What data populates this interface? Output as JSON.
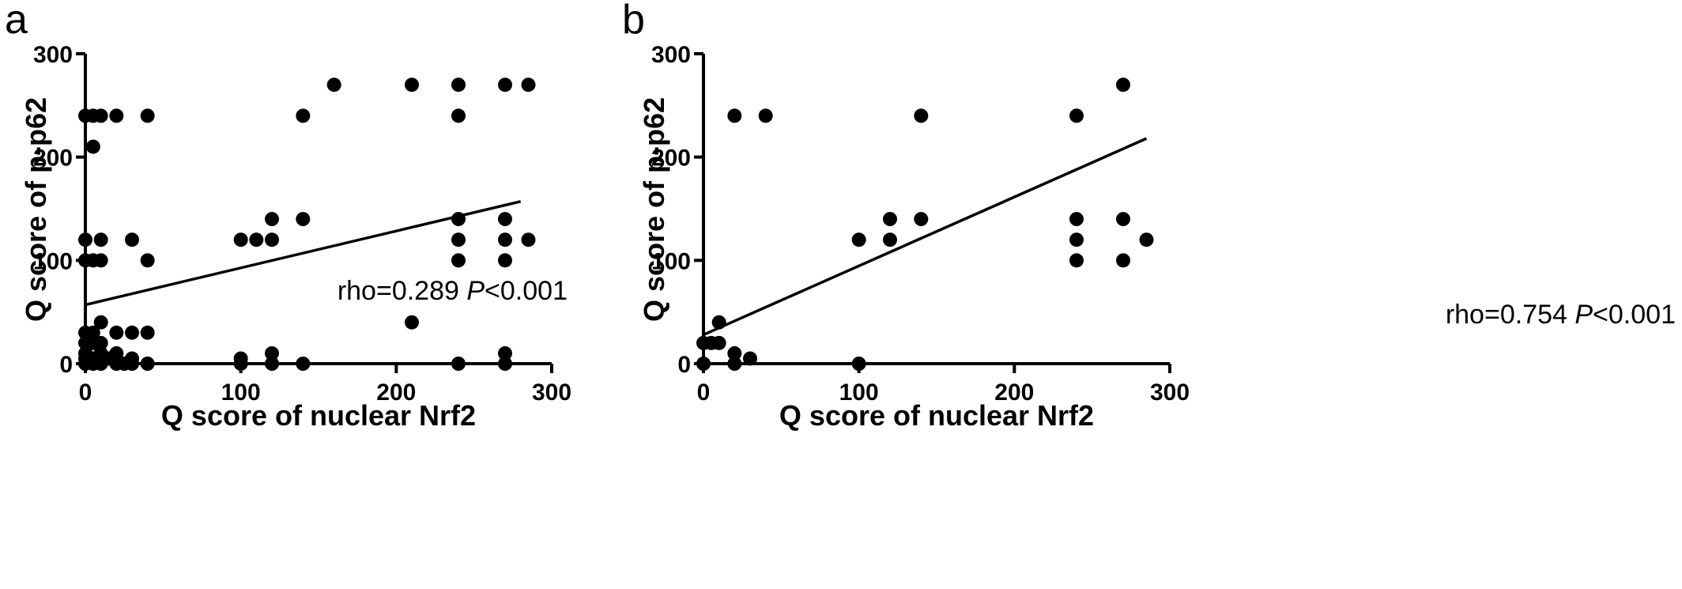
{
  "chart_data": [
    {
      "type": "scatter",
      "panel_label": "a",
      "xlabel": "Q score of nuclear Nrf2",
      "ylabel": "Q score of p-p62",
      "xlim": [
        0,
        300
      ],
      "ylim": [
        0,
        300
      ],
      "xticks": [
        "0",
        "100",
        "200",
        "300"
      ],
      "yticks": [
        "0",
        "100",
        "200",
        "300"
      ],
      "grid": false,
      "points": [
        [
          0,
          240
        ],
        [
          5,
          240
        ],
        [
          10,
          240
        ],
        [
          20,
          240
        ],
        [
          40,
          240
        ],
        [
          5,
          210
        ],
        [
          0,
          120
        ],
        [
          10,
          120
        ],
        [
          30,
          120
        ],
        [
          0,
          100
        ],
        [
          5,
          100
        ],
        [
          10,
          100
        ],
        [
          40,
          100
        ],
        [
          0,
          30
        ],
        [
          5,
          30
        ],
        [
          20,
          30
        ],
        [
          30,
          30
        ],
        [
          40,
          30
        ],
        [
          10,
          40
        ],
        [
          0,
          20
        ],
        [
          5,
          20
        ],
        [
          10,
          20
        ],
        [
          0,
          10
        ],
        [
          10,
          10
        ],
        [
          20,
          10
        ],
        [
          0,
          5
        ],
        [
          5,
          5
        ],
        [
          15,
          5
        ],
        [
          30,
          5
        ],
        [
          0,
          0
        ],
        [
          5,
          0
        ],
        [
          10,
          0
        ],
        [
          20,
          0
        ],
        [
          25,
          0
        ],
        [
          30,
          0
        ],
        [
          40,
          0
        ],
        [
          100,
          120
        ],
        [
          110,
          120
        ],
        [
          120,
          120
        ],
        [
          120,
          140
        ],
        [
          140,
          140
        ],
        [
          140,
          240
        ],
        [
          160,
          270
        ],
        [
          210,
          270
        ],
        [
          100,
          5
        ],
        [
          100,
          0
        ],
        [
          120,
          10
        ],
        [
          120,
          0
        ],
        [
          140,
          0
        ],
        [
          210,
          40
        ],
        [
          240,
          270
        ],
        [
          240,
          240
        ],
        [
          240,
          140
        ],
        [
          240,
          120
        ],
        [
          240,
          100
        ],
        [
          240,
          0
        ],
        [
          270,
          270
        ],
        [
          270,
          140
        ],
        [
          270,
          120
        ],
        [
          270,
          100
        ],
        [
          270,
          10
        ],
        [
          270,
          0
        ],
        [
          285,
          270
        ],
        [
          285,
          120
        ]
      ],
      "fit_line": {
        "x": [
          0,
          280
        ],
        "y": [
          57,
          157
        ]
      },
      "annotation": {
        "prefix": "rho=0.289 ",
        "p_symbol": "P",
        "suffix": "<0.001"
      }
    },
    {
      "type": "scatter",
      "panel_label": "b",
      "xlabel": "Q score of nuclear Nrf2",
      "ylabel": "Q score of p-p62",
      "xlim": [
        0,
        300
      ],
      "ylim": [
        0,
        300
      ],
      "xticks": [
        "0",
        "100",
        "200",
        "300"
      ],
      "yticks": [
        "0",
        "100",
        "200",
        "300"
      ],
      "grid": false,
      "points": [
        [
          20,
          240
        ],
        [
          40,
          240
        ],
        [
          140,
          240
        ],
        [
          240,
          240
        ],
        [
          270,
          270
        ],
        [
          100,
          120
        ],
        [
          120,
          140
        ],
        [
          120,
          120
        ],
        [
          140,
          140
        ],
        [
          240,
          140
        ],
        [
          240,
          120
        ],
        [
          240,
          100
        ],
        [
          270,
          140
        ],
        [
          270,
          100
        ],
        [
          285,
          120
        ],
        [
          10,
          40
        ],
        [
          0,
          20
        ],
        [
          5,
          20
        ],
        [
          10,
          20
        ],
        [
          20,
          10
        ],
        [
          30,
          5
        ],
        [
          20,
          0
        ],
        [
          0,
          0
        ],
        [
          100,
          0
        ]
      ],
      "fit_line": {
        "x": [
          0,
          285
        ],
        "y": [
          28,
          218
        ]
      },
      "annotation": {
        "prefix": "rho=0.754 ",
        "p_symbol": "P",
        "suffix": "<0.001"
      }
    }
  ]
}
